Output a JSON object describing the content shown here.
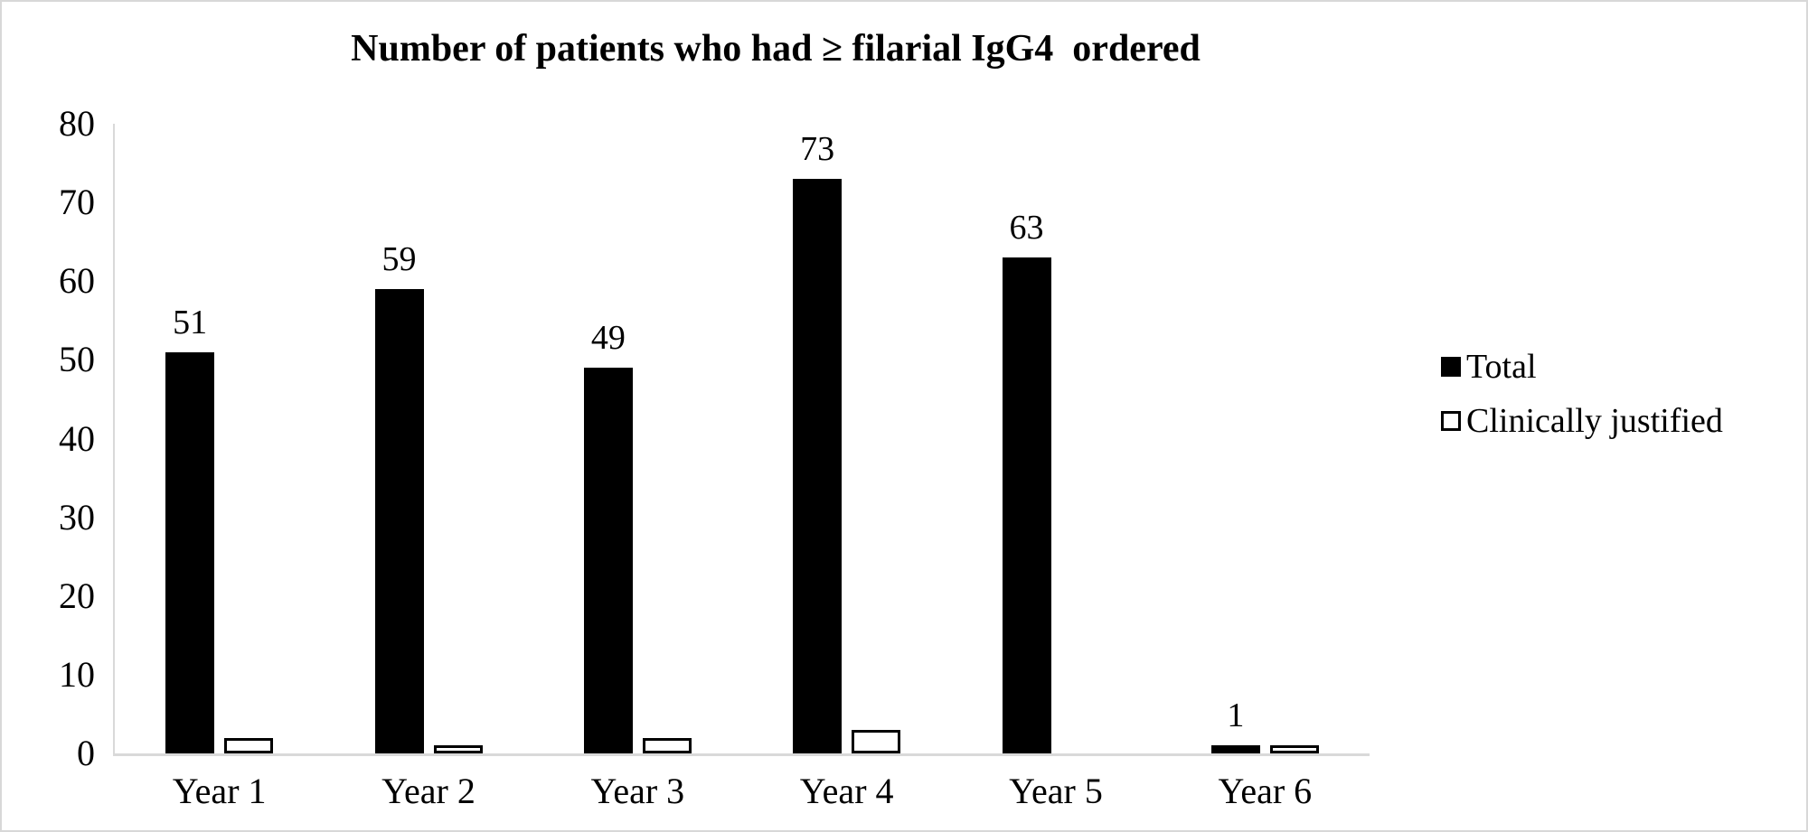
{
  "figure": {
    "background_color": "#ffffff",
    "border_color": "#d8d8d8"
  },
  "chart_data": {
    "type": "bar",
    "title": "Number of patients who had ≥ filarial IgG4  ordered",
    "categories": [
      "Year 1",
      "Year 2",
      "Year 3",
      "Year 4",
      "Year 5",
      "Year 6"
    ],
    "series": [
      {
        "name": "Total",
        "values": [
          51,
          59,
          49,
          73,
          63,
          1
        ],
        "fill": "#000000",
        "border": "#000000",
        "style": "filled",
        "data_labels": [
          "51",
          "59",
          "49",
          "73",
          "63",
          "1"
        ]
      },
      {
        "name": "Clinically justified",
        "values": [
          2,
          1,
          2,
          3,
          0,
          1
        ],
        "fill": "#ffffff",
        "border": "#000000",
        "style": "outlined",
        "data_labels": null
      }
    ],
    "xlabel": "",
    "ylabel": "",
    "ylim": [
      0,
      80
    ],
    "yticks": [
      0,
      10,
      20,
      30,
      40,
      50,
      60,
      70,
      80
    ],
    "grid": false,
    "axis_color": "#d9d9d9",
    "legend_position": "right"
  },
  "legend": {
    "items": [
      {
        "label": "Total",
        "swatch": "filled-black"
      },
      {
        "label": "Clinically justified",
        "swatch": "white-outlined"
      }
    ]
  }
}
